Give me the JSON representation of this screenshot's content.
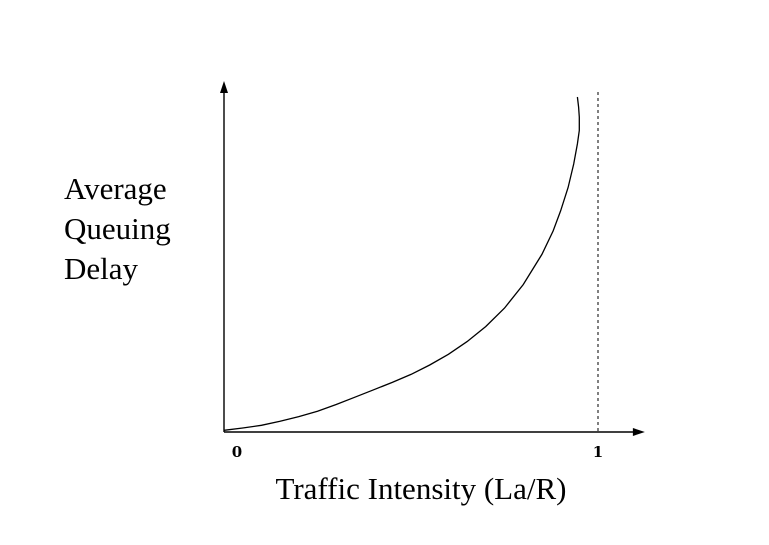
{
  "chart_data": {
    "type": "line",
    "xlabel": "Traffic Intensity (La/R)",
    "ylabel_lines": [
      "Average",
      "Queuing",
      "Delay"
    ],
    "x_ticks": [
      {
        "value": 0,
        "label": "0"
      },
      {
        "value": 1,
        "label": "1"
      }
    ],
    "asymptote_x": 1,
    "grid": false,
    "legend": "none",
    "xlim": [
      0,
      1.12
    ],
    "ylim": [
      0,
      1
    ],
    "series": [
      {
        "x": [
          0,
          0.05,
          0.1,
          0.15,
          0.2,
          0.25,
          0.3,
          0.35,
          0.4,
          0.45,
          0.5,
          0.55,
          0.6,
          0.65,
          0.7,
          0.75,
          0.8,
          0.85,
          0.88,
          0.9,
          0.92,
          0.935,
          0.945,
          0.95,
          0.95,
          0.948,
          0.945
        ],
        "y": [
          0.005,
          0.012,
          0.02,
          0.032,
          0.046,
          0.062,
          0.082,
          0.104,
          0.126,
          0.148,
          0.172,
          0.2,
          0.232,
          0.27,
          0.315,
          0.37,
          0.44,
          0.53,
          0.6,
          0.66,
          0.73,
          0.8,
          0.86,
          0.9,
          0.94,
          0.97,
          1.0
        ]
      }
    ]
  }
}
